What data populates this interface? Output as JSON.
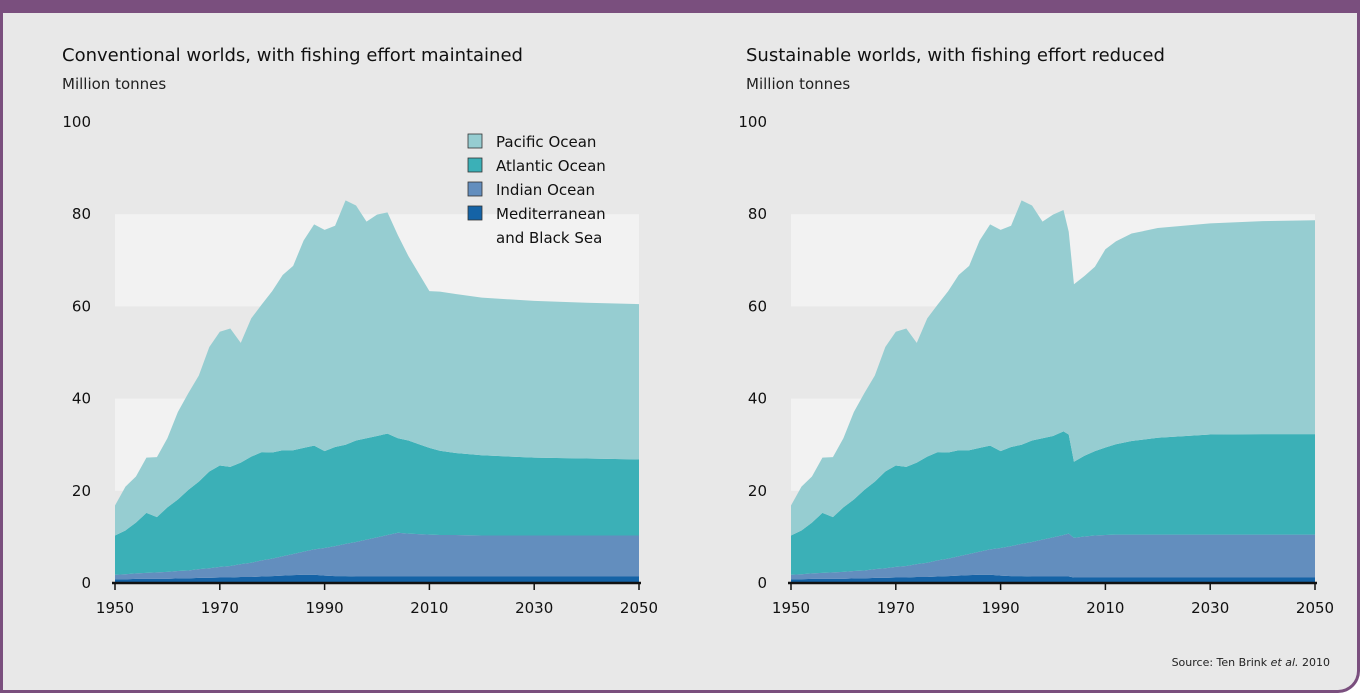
{
  "colors": {
    "frame": "#7a4f7e",
    "background": "#e8e8e8",
    "band": "#f2f2f2",
    "pacific": "#96cdd1",
    "atlantic": "#3bb0b7",
    "indian": "#638ebe",
    "mediterranean": "#1563a6"
  },
  "panels": [
    {
      "title": "Conventional worlds, with fishing effort maintained",
      "unit": "Million tonnes"
    },
    {
      "title": "Sustainable worlds, with fishing effort reduced",
      "unit": "Million tonnes"
    }
  ],
  "legend": [
    {
      "label": "Pacific Ocean",
      "color_key": "pacific"
    },
    {
      "label": "Atlantic Ocean",
      "color_key": "atlantic"
    },
    {
      "label": "Indian Ocean",
      "color_key": "indian"
    },
    {
      "label": "Mediterranean\nand Black Sea",
      "color_key": "mediterranean"
    }
  ],
  "source": {
    "prefix": "Source: Ten Brink ",
    "italic": "et al.",
    "suffix": " 2010"
  },
  "chart_data": [
    {
      "type": "area",
      "stacked": true,
      "title": "Conventional worlds, with fishing effort maintained",
      "ylabel": "Million tonnes",
      "ylim": [
        0,
        100
      ],
      "yticks": [
        0,
        20,
        40,
        60,
        80,
        100
      ],
      "xlim": [
        1950,
        2050
      ],
      "xticks": [
        1950,
        1970,
        1990,
        2010,
        2030,
        2050
      ],
      "legend_position": "top-right",
      "x": [
        1950,
        1952,
        1954,
        1956,
        1958,
        1960,
        1962,
        1964,
        1966,
        1968,
        1970,
        1972,
        1974,
        1976,
        1978,
        1980,
        1982,
        1984,
        1986,
        1988,
        1990,
        1992,
        1994,
        1996,
        1998,
        2000,
        2002,
        2004,
        2006,
        2008,
        2010,
        2012,
        2015,
        2020,
        2030,
        2040,
        2050
      ],
      "series": [
        {
          "name": "Mediterranean and Black Sea",
          "values": [
            0.8,
            0.8,
            0.9,
            0.9,
            0.9,
            0.9,
            1.0,
            1.0,
            1.1,
            1.1,
            1.2,
            1.2,
            1.3,
            1.3,
            1.4,
            1.5,
            1.6,
            1.7,
            1.8,
            1.8,
            1.6,
            1.5,
            1.5,
            1.4,
            1.4,
            1.4,
            1.4,
            1.4,
            1.4,
            1.4,
            1.4,
            1.4,
            1.4,
            1.4,
            1.4,
            1.4,
            1.4
          ]
        },
        {
          "name": "Indian Ocean",
          "values": [
            1.0,
            1.1,
            1.2,
            1.3,
            1.4,
            1.5,
            1.6,
            1.7,
            1.9,
            2.1,
            2.3,
            2.5,
            2.8,
            3.1,
            3.5,
            3.8,
            4.2,
            4.6,
            5.0,
            5.5,
            6.0,
            6.5,
            7.0,
            7.5,
            8.0,
            8.5,
            9.0,
            9.5,
            9.3,
            9.2,
            9.1,
            9.0,
            9.0,
            8.9,
            8.9,
            8.9,
            8.9
          ]
        },
        {
          "name": "Atlantic Ocean",
          "values": [
            8.5,
            9.5,
            11,
            13,
            12,
            14,
            15.5,
            17.5,
            19,
            21,
            22,
            21.5,
            22,
            23,
            23.5,
            23,
            23,
            22.5,
            22.5,
            22.5,
            21,
            21.5,
            21.5,
            22,
            22,
            22,
            22,
            20.5,
            20.2,
            19.5,
            18.8,
            18.3,
            17.8,
            17.4,
            16.9,
            16.7,
            16.5
          ]
        },
        {
          "name": "Pacific Ocean",
          "values": [
            6.5,
            9.5,
            10,
            12,
            13,
            15,
            19,
            21,
            23,
            27,
            29,
            30,
            26,
            30,
            32,
            35,
            38,
            40,
            45,
            48,
            48,
            48,
            53,
            51,
            47,
            48,
            48,
            44,
            40,
            37,
            34,
            34.5,
            34.5,
            34.2,
            34,
            33.8,
            33.7
          ]
        }
      ]
    },
    {
      "type": "area",
      "stacked": true,
      "title": "Sustainable worlds, with fishing effort reduced",
      "ylabel": "Million tonnes",
      "ylim": [
        0,
        100
      ],
      "yticks": [
        0,
        20,
        40,
        60,
        80,
        100
      ],
      "xlim": [
        1950,
        2050
      ],
      "xticks": [
        1950,
        1970,
        1990,
        2010,
        2030,
        2050
      ],
      "x": [
        1950,
        1952,
        1954,
        1956,
        1958,
        1960,
        1962,
        1964,
        1966,
        1968,
        1970,
        1972,
        1974,
        1976,
        1978,
        1980,
        1982,
        1984,
        1986,
        1988,
        1990,
        1992,
        1994,
        1996,
        1998,
        2000,
        2002,
        2003,
        2004,
        2006,
        2008,
        2010,
        2012,
        2015,
        2020,
        2030,
        2040,
        2050
      ],
      "series": [
        {
          "name": "Mediterranean and Black Sea",
          "values": [
            0.8,
            0.8,
            0.9,
            0.9,
            0.9,
            0.9,
            1.0,
            1.0,
            1.1,
            1.1,
            1.2,
            1.2,
            1.3,
            1.3,
            1.4,
            1.5,
            1.6,
            1.7,
            1.8,
            1.8,
            1.6,
            1.5,
            1.5,
            1.4,
            1.4,
            1.4,
            1.4,
            1.4,
            1.2,
            1.2,
            1.2,
            1.2,
            1.2,
            1.2,
            1.2,
            1.2,
            1.2,
            1.2
          ]
        },
        {
          "name": "Indian Ocean",
          "values": [
            1.0,
            1.1,
            1.2,
            1.3,
            1.4,
            1.5,
            1.6,
            1.7,
            1.9,
            2.1,
            2.3,
            2.5,
            2.8,
            3.1,
            3.5,
            3.8,
            4.2,
            4.6,
            5.0,
            5.5,
            6.0,
            6.5,
            7.0,
            7.5,
            8.0,
            8.5,
            9.0,
            9.3,
            8.6,
            8.9,
            9.1,
            9.2,
            9.3,
            9.3,
            9.3,
            9.3,
            9.3,
            9.3
          ]
        },
        {
          "name": "Atlantic Ocean",
          "values": [
            8.5,
            9.5,
            11,
            13,
            12,
            14,
            15.5,
            17.5,
            19,
            21,
            22,
            21.5,
            22,
            23,
            23.5,
            23,
            23,
            22.5,
            22.5,
            22.5,
            21,
            21.5,
            21.5,
            22,
            22,
            22,
            22.5,
            21.5,
            16.5,
            17.5,
            18.3,
            19,
            19.6,
            20.3,
            21,
            21.7,
            21.8,
            21.8
          ]
        },
        {
          "name": "Pacific Ocean",
          "values": [
            6.5,
            9.5,
            10,
            12,
            13,
            15,
            19,
            21,
            23,
            27,
            29,
            30,
            26,
            30,
            32,
            35,
            38,
            40,
            45,
            48,
            48,
            48,
            53,
            51,
            47,
            48,
            48,
            44,
            38.5,
            39,
            40,
            43,
            44,
            45,
            45.5,
            45.8,
            46.2,
            46.4
          ]
        }
      ]
    }
  ]
}
